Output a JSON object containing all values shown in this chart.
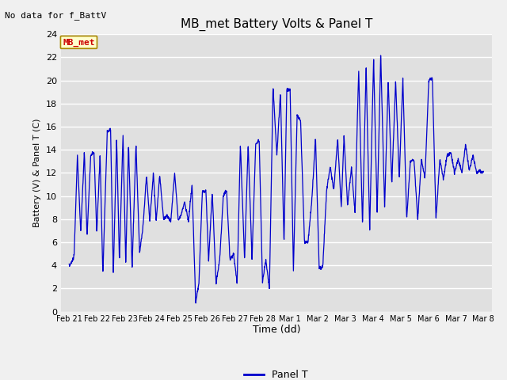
{
  "title": "MB_met Battery Volts & Panel T",
  "note": "No data for f_BattV",
  "ylabel": "Battery (V) & Panel T (C)",
  "xlabel": "Time (dd)",
  "legend_label": "Panel T",
  "legend_line_color": "#0000cc",
  "line_color": "#0000cc",
  "background_color": "#f0f0f0",
  "plot_bg_color": "#e0e0e0",
  "ylim": [
    0,
    24
  ],
  "yticks": [
    0,
    2,
    4,
    6,
    8,
    10,
    12,
    14,
    16,
    18,
    20,
    22,
    24
  ],
  "xtick_labels": [
    "Feb 21",
    "Feb 22",
    "Feb 23",
    "Feb 24",
    "Feb 25",
    "Feb 26",
    "Feb 27",
    "Feb 28",
    "Mar 1",
    "Mar 2",
    "Mar 3",
    "Mar 4",
    "Mar 5",
    "Mar 6",
    "Mar 7",
    "Mar 8"
  ],
  "xtick_positions": [
    0,
    1,
    2,
    3,
    4,
    5,
    6,
    7,
    8,
    9,
    10,
    11,
    12,
    13,
    14,
    15
  ],
  "inplot_label": "MB_met",
  "inplot_label_color": "#cc0000",
  "inplot_label_bg": "#ffffcc",
  "inplot_label_border": "#aa8800",
  "breakpoints_x": [
    0,
    0.08,
    0.18,
    0.3,
    0.42,
    0.55,
    0.65,
    0.78,
    0.9,
    1.0,
    1.12,
    1.22,
    1.38,
    1.5,
    1.6,
    1.72,
    1.82,
    1.95,
    2.05,
    2.15,
    2.28,
    2.42,
    2.55,
    2.68,
    2.8,
    2.92,
    3.05,
    3.15,
    3.28,
    3.42,
    3.55,
    3.68,
    3.82,
    3.95,
    4.05,
    4.18,
    4.32,
    4.45,
    4.58,
    4.7,
    4.82,
    4.95,
    5.05,
    5.18,
    5.32,
    5.45,
    5.58,
    5.7,
    5.82,
    5.95,
    6.08,
    6.2,
    6.35,
    6.48,
    6.62,
    6.75,
    6.88,
    7.0,
    7.12,
    7.25,
    7.38,
    7.52,
    7.65,
    7.78,
    7.88,
    8.0,
    8.12,
    8.25,
    8.38,
    8.52,
    8.65,
    8.78,
    8.92,
    9.05,
    9.18,
    9.32,
    9.45,
    9.58,
    9.72,
    9.85,
    9.95,
    10.08,
    10.22,
    10.35,
    10.48,
    10.62,
    10.75,
    10.88,
    11.02,
    11.15,
    11.28,
    11.42,
    11.55,
    11.68,
    11.82,
    11.95,
    12.08,
    12.22,
    12.35,
    12.48,
    12.62,
    12.75,
    12.88,
    13.02,
    13.15,
    13.28,
    13.42,
    13.55,
    13.68,
    13.82,
    13.95,
    14.08,
    14.22,
    14.35,
    14.48,
    14.62,
    14.75,
    14.88,
    15.0
  ],
  "breakpoints_y": [
    4.0,
    4.2,
    4.8,
    13.5,
    6.8,
    13.8,
    6.5,
    13.5,
    13.8,
    6.8,
    13.5,
    3.2,
    15.5,
    15.8,
    3.2,
    15.0,
    4.5,
    15.2,
    4.2,
    14.5,
    3.8,
    14.5,
    5.0,
    7.5,
    11.8,
    7.8,
    12.0,
    7.8,
    11.8,
    8.0,
    8.3,
    7.8,
    12.0,
    8.0,
    8.3,
    9.5,
    7.8,
    11.0,
    0.7,
    2.5,
    10.3,
    10.5,
    4.5,
    10.3,
    2.5,
    4.5,
    10.0,
    10.5,
    4.5,
    5.0,
    2.5,
    14.5,
    4.5,
    14.5,
    4.5,
    14.5,
    14.8,
    2.5,
    4.5,
    2.0,
    19.5,
    13.5,
    19.0,
    6.0,
    19.2,
    19.2,
    3.5,
    17.0,
    16.5,
    6.0,
    6.0,
    9.5,
    15.0,
    3.8,
    3.8,
    10.5,
    12.5,
    10.5,
    15.0,
    9.0,
    15.2,
    9.2,
    12.5,
    8.5,
    21.0,
    7.5,
    21.2,
    7.0,
    22.0,
    8.5,
    22.2,
    9.0,
    20.0,
    11.0,
    20.0,
    11.5,
    20.2,
    8.0,
    13.0,
    13.2,
    8.0,
    13.2,
    11.5,
    20.0,
    20.2,
    8.0,
    13.2,
    11.5,
    13.5,
    13.8,
    12.0,
    13.2,
    12.0,
    14.5,
    12.2,
    13.5,
    12.0,
    12.2,
    12.0
  ]
}
